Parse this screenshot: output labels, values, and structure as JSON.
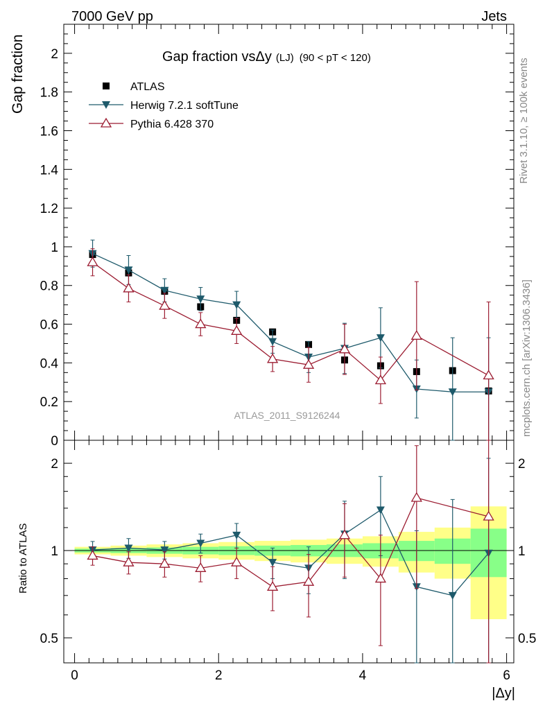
{
  "header": {
    "left": "7000 GeV pp",
    "right": "Jets"
  },
  "side_labels": {
    "rivet": "Rivet 3.1.10, ≥ 100k events",
    "mcplots": "mcplots.cern.ch [arXiv:1306.3436]"
  },
  "chart_data": {
    "type": "line",
    "title_prefix": "Gap fraction vs",
    "title_var": "Δy",
    "title_suffix": "(LJ)",
    "title_cut": "(90 < pT < 120)",
    "ylabel": "Gap fraction",
    "ratio_ylabel": "Ratio to ATLAS",
    "xlabel": "|Δy|",
    "watermark": "ATLAS_2011_S9126244",
    "xlim": [
      -0.15,
      6.1
    ],
    "ylim": [
      0,
      2.15
    ],
    "ratio_ylim": [
      0.41,
      2.4
    ],
    "x_ticks": [
      0,
      2,
      4,
      6
    ],
    "x_tick_labels": [
      "0",
      "2",
      "4",
      "6"
    ],
    "y_ticks": [
      0,
      0.2,
      0.4,
      0.6,
      0.8,
      1,
      1.2,
      1.4,
      1.6,
      1.8,
      2
    ],
    "y_tick_labels": [
      "0",
      "0.2",
      "0.4",
      "0.6",
      "0.8",
      "1",
      "1.2",
      "1.4",
      "1.6",
      "1.8",
      "2"
    ],
    "ratio_ticks": [
      0.5,
      1,
      2
    ],
    "ratio_tick_labels": [
      "0.5",
      "1",
      "2"
    ],
    "bin_edges": [
      0,
      0.5,
      1,
      1.5,
      2,
      2.5,
      3,
      3.5,
      4,
      4.5,
      5,
      5.5,
      6
    ],
    "x": [
      0.25,
      0.75,
      1.25,
      1.75,
      2.25,
      2.75,
      3.25,
      3.75,
      4.25,
      4.75,
      5.25,
      5.75
    ],
    "band_green": [
      0.015,
      0.02,
      0.025,
      0.03,
      0.035,
      0.04,
      0.045,
      0.05,
      0.06,
      0.08,
      0.1,
      0.19
    ],
    "band_yellow": [
      0.03,
      0.04,
      0.05,
      0.06,
      0.07,
      0.08,
      0.09,
      0.1,
      0.12,
      0.16,
      0.2,
      0.42
    ],
    "series": [
      {
        "name": "ATLAS",
        "color": "#000000",
        "marker": "square",
        "values": [
          0.96,
          0.865,
          0.77,
          0.69,
          0.62,
          0.56,
          0.495,
          0.415,
          0.385,
          0.355,
          0.36,
          0.255
        ]
      },
      {
        "name": "Herwig 7.2.1 softTune",
        "color": "#1e5a6b",
        "marker": "triangle-down",
        "values": [
          0.965,
          0.88,
          0.775,
          0.73,
          0.7,
          0.51,
          0.43,
          0.475,
          0.53,
          0.265,
          0.25,
          0.25
        ],
        "errors": [
          0.07,
          0.075,
          0.06,
          0.06,
          0.07,
          0.06,
          0.08,
          0.13,
          0.155,
          0.15,
          0.28,
          0.28
        ],
        "ratio": [
          1.005,
          1.02,
          1.005,
          1.06,
          1.13,
          0.91,
          0.87,
          1.14,
          1.38,
          0.75,
          0.7,
          0.98
        ],
        "ratio_errors": [
          0.07,
          0.08,
          0.07,
          0.08,
          0.11,
          0.11,
          0.16,
          0.34,
          0.42,
          0.42,
          0.8,
          1.1
        ]
      },
      {
        "name": "Pythia 6.428 370",
        "color": "#9b1b30",
        "marker": "triangle-up-open",
        "values": [
          0.92,
          0.785,
          0.695,
          0.6,
          0.565,
          0.42,
          0.39,
          0.47,
          0.31,
          0.54,
          null,
          0.335
        ],
        "errors": [
          0.07,
          0.07,
          0.065,
          0.06,
          0.065,
          0.065,
          0.09,
          0.13,
          0.12,
          0.28,
          null,
          0.38
        ],
        "ratio": [
          0.96,
          0.91,
          0.9,
          0.87,
          0.91,
          0.75,
          0.78,
          1.13,
          0.8,
          1.52,
          null,
          1.31
        ],
        "ratio_errors": [
          0.07,
          0.08,
          0.09,
          0.09,
          0.11,
          0.13,
          0.19,
          0.32,
          0.33,
          0.78,
          null,
          1.35
        ]
      }
    ]
  }
}
